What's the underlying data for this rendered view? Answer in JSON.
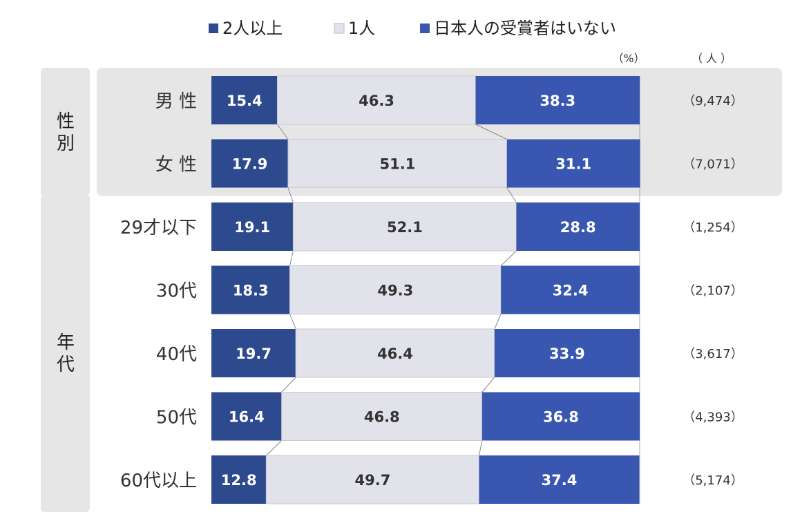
{
  "chart_data": {
    "type": "bar",
    "orientation": "horizontal",
    "stacked": true,
    "percent": true,
    "unit_percent": "（%）",
    "unit_count": "（ 人 ）",
    "groups": [
      {
        "label": "性別",
        "rows": [
          0,
          1
        ]
      },
      {
        "label": "年代",
        "rows": [
          2,
          3,
          4,
          5,
          6
        ]
      }
    ],
    "categories": [
      "男 性",
      "女 性",
      "29才以下",
      "30代",
      "40代",
      "50代",
      "60代以上"
    ],
    "counts": [
      "（9,474）",
      "（7,071）",
      "（1,254）",
      "（2,107）",
      "（3,617）",
      "（4,393）",
      "（5,174）"
    ],
    "series": [
      {
        "name": "2人以上",
        "color": "#2e4a8f",
        "text_color": "#ffffff",
        "values": [
          15.4,
          17.9,
          19.1,
          18.3,
          19.7,
          16.4,
          12.8
        ]
      },
      {
        "name": "1人",
        "color": "#e2e3ea",
        "text_color": "#333333",
        "values": [
          46.3,
          51.1,
          52.1,
          49.3,
          46.4,
          46.8,
          49.7
        ]
      },
      {
        "name": "日本人の受賞者はいない",
        "color": "#3957b0",
        "text_color": "#ffffff",
        "values": [
          38.3,
          31.1,
          28.8,
          32.4,
          33.9,
          36.8,
          37.4
        ]
      }
    ],
    "xlim": [
      0,
      100
    ],
    "grid": false,
    "legend": "top",
    "colors": {
      "group_panel": "#e6e6e6",
      "connector": "#888888"
    }
  }
}
